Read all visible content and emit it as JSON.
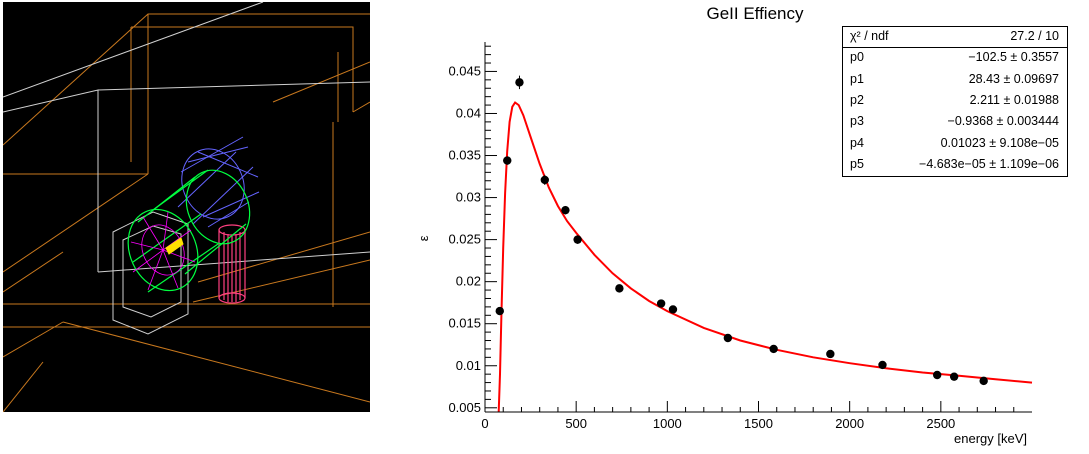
{
  "chart_data": {
    "type": "scatter",
    "title": "GeII Effiency",
    "xlabel": "energy [keV]",
    "ylabel": "ε",
    "xlim": [
      0,
      3000
    ],
    "ylim": [
      0.0045,
      0.0485
    ],
    "xticks": [
      0,
      500,
      1000,
      1500,
      2000,
      2500
    ],
    "xtick_labels": [
      "0",
      "500",
      "1000",
      "1500",
      "2000",
      "2500"
    ],
    "yticks": [
      0.005,
      0.01,
      0.015,
      0.02,
      0.025,
      0.03,
      0.035,
      0.04,
      0.045
    ],
    "ytick_labels": [
      "0.005",
      "0.01",
      "0.015",
      "0.02",
      "0.025",
      "0.03",
      "0.035",
      "0.04",
      "0.045"
    ],
    "grid": false,
    "series": [
      {
        "kind": "points_with_errors",
        "color": "#000000",
        "points": [
          {
            "x": 81,
            "y": 0.0165,
            "err": 0.0004
          },
          {
            "x": 122,
            "y": 0.0344,
            "err": 0.0005
          },
          {
            "x": 189,
            "y": 0.0437,
            "err": 0.0008
          },
          {
            "x": 328,
            "y": 0.0321,
            "err": 0.0006
          },
          {
            "x": 441,
            "y": 0.0285,
            "err": 0.0005
          },
          {
            "x": 508,
            "y": 0.025,
            "err": 0.0005
          },
          {
            "x": 737,
            "y": 0.0192,
            "err": 0.0004
          },
          {
            "x": 966,
            "y": 0.0174,
            "err": 0.0004
          },
          {
            "x": 1031,
            "y": 0.0167,
            "err": 0.0004
          },
          {
            "x": 1332,
            "y": 0.0133,
            "err": 0.0003
          },
          {
            "x": 1583,
            "y": 0.012,
            "err": 0.0002
          },
          {
            "x": 1894,
            "y": 0.0114,
            "err": 0.0002
          },
          {
            "x": 2180,
            "y": 0.0101,
            "err": 0.0002
          },
          {
            "x": 2480,
            "y": 0.0089,
            "err": 0.0002
          },
          {
            "x": 2573,
            "y": 0.0087,
            "err": 0.0002
          },
          {
            "x": 2735,
            "y": 0.0082,
            "err": 0.0002
          }
        ]
      },
      {
        "kind": "fit_line",
        "color": "#ff0000",
        "curve": [
          {
            "x": 75,
            "y": 0.0045
          },
          {
            "x": 82,
            "y": 0.009
          },
          {
            "x": 90,
            "y": 0.016
          },
          {
            "x": 100,
            "y": 0.024
          },
          {
            "x": 110,
            "y": 0.0305
          },
          {
            "x": 122,
            "y": 0.0355
          },
          {
            "x": 135,
            "y": 0.039
          },
          {
            "x": 150,
            "y": 0.0408
          },
          {
            "x": 165,
            "y": 0.0413
          },
          {
            "x": 185,
            "y": 0.041
          },
          {
            "x": 210,
            "y": 0.0398
          },
          {
            "x": 250,
            "y": 0.0372
          },
          {
            "x": 300,
            "y": 0.034
          },
          {
            "x": 350,
            "y": 0.0312
          },
          {
            "x": 400,
            "y": 0.029
          },
          {
            "x": 450,
            "y": 0.0272
          },
          {
            "x": 500,
            "y": 0.0258
          },
          {
            "x": 600,
            "y": 0.0232
          },
          {
            "x": 700,
            "y": 0.021
          },
          {
            "x": 800,
            "y": 0.0192
          },
          {
            "x": 900,
            "y": 0.0177
          },
          {
            "x": 1000,
            "y": 0.0165
          },
          {
            "x": 1200,
            "y": 0.0145
          },
          {
            "x": 1400,
            "y": 0.013
          },
          {
            "x": 1600,
            "y": 0.0119
          },
          {
            "x": 1800,
            "y": 0.011
          },
          {
            "x": 2000,
            "y": 0.0103
          },
          {
            "x": 2200,
            "y": 0.0097
          },
          {
            "x": 2400,
            "y": 0.0092
          },
          {
            "x": 2600,
            "y": 0.0088
          },
          {
            "x": 2800,
            "y": 0.0084
          },
          {
            "x": 3000,
            "y": 0.008
          }
        ]
      }
    ],
    "stats": {
      "placement": "top-right",
      "rows": [
        {
          "label": "χ² / ndf",
          "value": "27.2 / 10"
        },
        {
          "label": "p0",
          "value": "−102.5 ± 0.3557"
        },
        {
          "label": "p1",
          "value": "28.43 ± 0.09697"
        },
        {
          "label": "p2",
          "value": "2.211 ± 0.01988"
        },
        {
          "label": "p3",
          "value": "−0.9368 ± 0.003444"
        },
        {
          "label": "p4",
          "value": "0.01023 ± 9.108e−05"
        },
        {
          "label": "p5",
          "value": "−4.683e−05 ± 1.109e−06"
        }
      ]
    }
  },
  "geometry_view": {
    "background": "#000000",
    "colors": {
      "room": "#c8781e",
      "frame": "#d0d0d0",
      "crystal_front": "#00ff40",
      "crystal_back": "#6464ff",
      "endcap": "#ff00ff",
      "dewar": "#ff4080",
      "source": "#ffe000"
    }
  }
}
